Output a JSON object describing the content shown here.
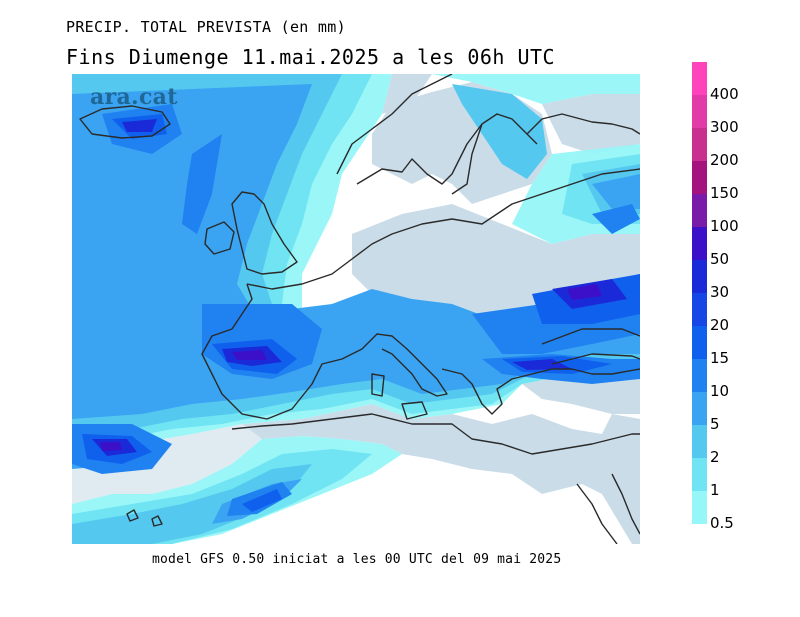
{
  "header": {
    "title_line1": "PRECIP. TOTAL PREVISTA (en mm)",
    "title_line2": "Fins Diumenge 11.mai.2025 a les 06h UTC"
  },
  "watermark": "ara.cat",
  "footer": "model GFS 0.50 iniciat a les 00 UTC del 09 mai 2025",
  "legend": {
    "levels": [
      {
        "label": "400",
        "color": "#ff44bb"
      },
      {
        "label": "300",
        "color": "#e23aa6"
      },
      {
        "label": "200",
        "color": "#c82f8f"
      },
      {
        "label": "150",
        "color": "#a5147e"
      },
      {
        "label": "100",
        "color": "#7a1aa8"
      },
      {
        "label": "50",
        "color": "#3c10c8"
      },
      {
        "label": "30",
        "color": "#1a2ad8"
      },
      {
        "label": "20",
        "color": "#1646e6"
      },
      {
        "label": "15",
        "color": "#1060ee"
      },
      {
        "label": "10",
        "color": "#1f82f0"
      },
      {
        "label": "5",
        "color": "#3aa4f2"
      },
      {
        "label": "2",
        "color": "#55c8f0"
      },
      {
        "label": "1",
        "color": "#70e4f2"
      },
      {
        "label": "0.5",
        "color": "#96f6f8"
      }
    ]
  },
  "map": {
    "region": "Europe and North Africa",
    "sea_color": "#ffffff",
    "land_color": "#c9dce8",
    "coast_color": "#2a2a2a"
  }
}
